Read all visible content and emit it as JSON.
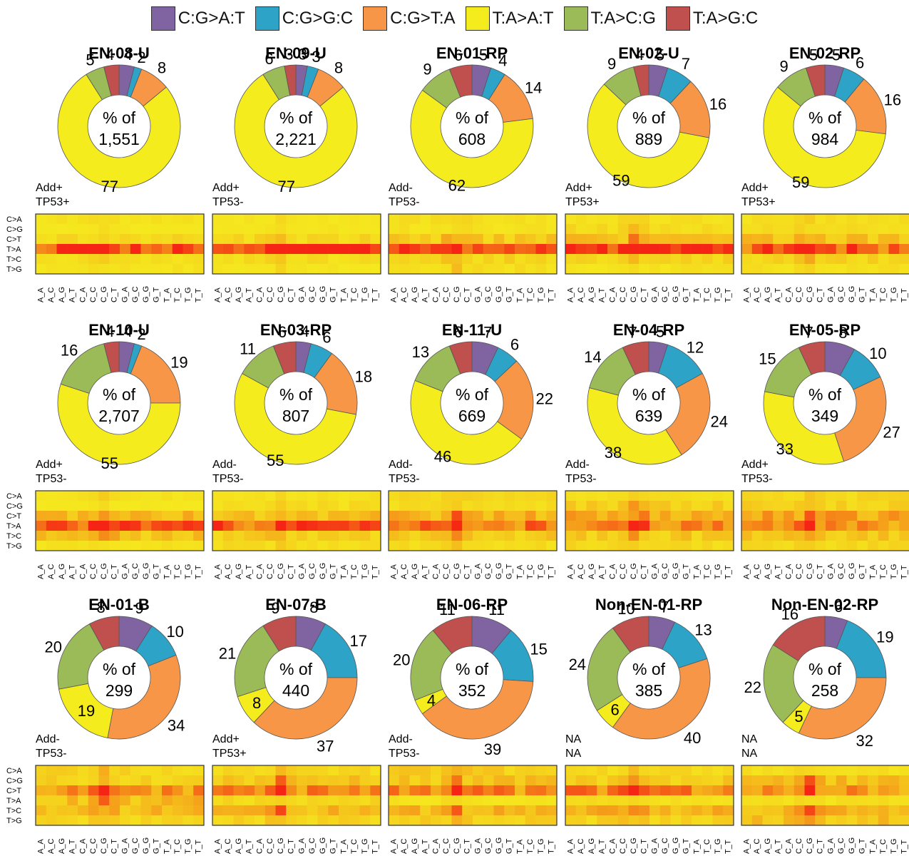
{
  "legend": [
    {
      "label": "C:G>A:T",
      "color": "#8064a2"
    },
    {
      "label": "C:G>G:C",
      "color": "#2ea3c8"
    },
    {
      "label": "C:G>T:A",
      "color": "#f79646"
    },
    {
      "label": "T:A>A:T",
      "color": "#f5ec1e"
    },
    {
      "label": "T:A>C:G",
      "color": "#9bbb59"
    },
    {
      "label": "T:A>G:C",
      "color": "#c0504d"
    }
  ],
  "heatmap_row_labels": [
    "C>A",
    "C>G",
    "C>T",
    "T>A",
    "T>C",
    "T>G"
  ],
  "heatmap_col_labels": [
    "A_A",
    "A_C",
    "A_G",
    "A_T",
    "C_A",
    "C_C",
    "C_G",
    "C_T",
    "G_A",
    "G_C",
    "G_G",
    "G_T",
    "T_A",
    "T_C",
    "T_G",
    "T_T"
  ],
  "center_prefix": "% of",
  "chart_data": [
    {
      "type": "pie",
      "title": "EN-08-U",
      "total": "1,551",
      "status": [
        "Add+",
        "TP53+"
      ],
      "values": [
        4,
        2,
        8,
        77,
        5,
        4
      ]
    },
    {
      "type": "pie",
      "title": "EN-09-U",
      "total": "2,221",
      "status": [
        "Add+",
        "TP53-"
      ],
      "values": [
        3,
        3,
        8,
        77,
        6,
        3
      ]
    },
    {
      "type": "pie",
      "title": "EN-01-RP",
      "total": "608",
      "status": [
        "Add-",
        "TP53-"
      ],
      "values": [
        5,
        4,
        14,
        62,
        9,
        6
      ]
    },
    {
      "type": "pie",
      "title": "EN-02-U",
      "total": "889",
      "status": [
        "Add+",
        "TP53+"
      ],
      "values": [
        5,
        7,
        16,
        59,
        9,
        4
      ]
    },
    {
      "type": "pie",
      "title": "EN-02-RP",
      "total": "984",
      "status": [
        "Add+",
        "TP53+"
      ],
      "values": [
        5,
        6,
        16,
        59,
        9,
        5
      ]
    },
    {
      "type": "pie",
      "title": "EN-10-U",
      "total": "2,707",
      "status": [
        "Add+",
        "TP53-"
      ],
      "values": [
        4,
        2,
        19,
        55,
        16,
        4
      ]
    },
    {
      "type": "pie",
      "title": "EN-03-RP",
      "total": "807",
      "status": [
        "Add-",
        "TP53-"
      ],
      "values": [
        4,
        6,
        18,
        55,
        11,
        6
      ]
    },
    {
      "type": "pie",
      "title": "EN-11-U",
      "total": "669",
      "status": [
        "Add-",
        "TP53-"
      ],
      "values": [
        7,
        6,
        22,
        46,
        13,
        6
      ]
    },
    {
      "type": "pie",
      "title": "EN-04-RP",
      "total": "639",
      "status": [
        "Add-",
        "TP53-"
      ],
      "values": [
        5,
        12,
        24,
        38,
        14,
        7
      ]
    },
    {
      "type": "pie",
      "title": "EN-05-RP",
      "total": "349",
      "status": [
        "Add+",
        "TP53-"
      ],
      "values": [
        8,
        10,
        27,
        33,
        15,
        7
      ]
    },
    {
      "type": "pie",
      "title": "EN-01-B",
      "total": "299",
      "status": [
        "Add-",
        "TP53-"
      ],
      "values": [
        9,
        10,
        34,
        19,
        20,
        8
      ]
    },
    {
      "type": "pie",
      "title": "EN-07-B",
      "total": "440",
      "status": [
        "Add+",
        "TP53+"
      ],
      "values": [
        8,
        17,
        37,
        8,
        21,
        9
      ]
    },
    {
      "type": "pie",
      "title": "EN-06-RP",
      "total": "352",
      "status": [
        "Add-",
        "TP53-"
      ],
      "values": [
        11,
        15,
        39,
        4,
        20,
        11
      ]
    },
    {
      "type": "pie",
      "title": "Non-EN-01-RP",
      "total": "385",
      "status": [
        "NA",
        "NA"
      ],
      "values": [
        7,
        13,
        40,
        6,
        24,
        10
      ]
    },
    {
      "type": "pie",
      "title": "Non-EN-02-RP",
      "total": "258",
      "status": [
        "NA",
        "NA"
      ],
      "values": [
        6,
        19,
        32,
        5,
        22,
        16
      ]
    }
  ]
}
